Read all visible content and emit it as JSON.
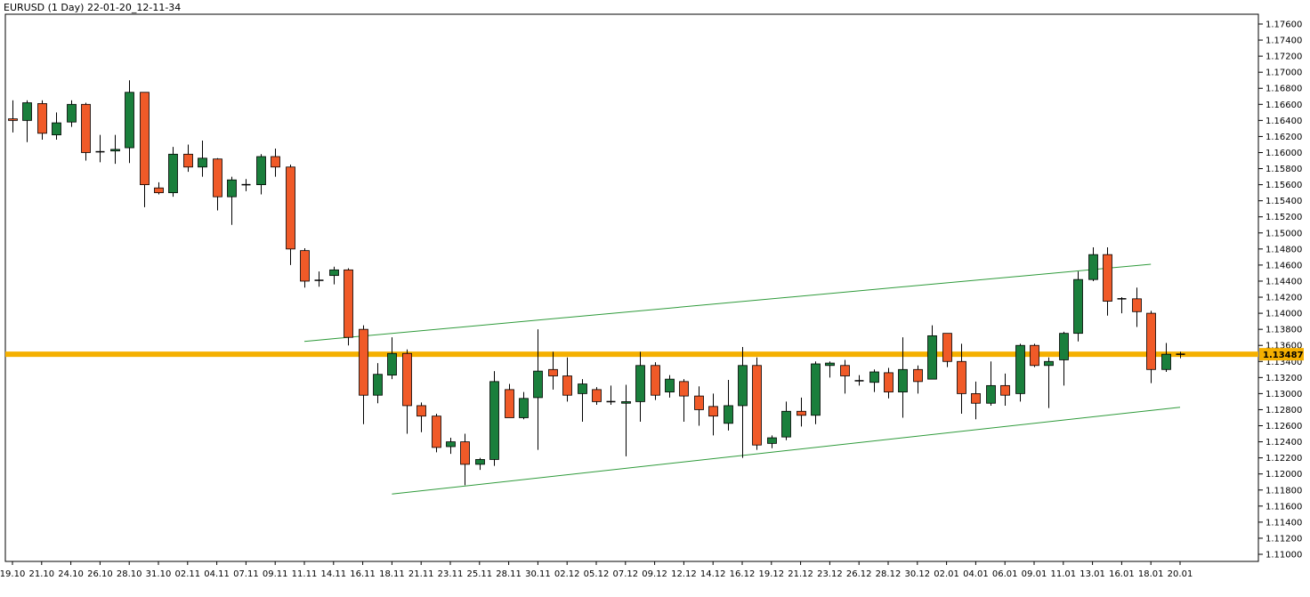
{
  "window": {
    "title": "EURUSD (1 Day) 22-01-20_12-11-34"
  },
  "colors": {
    "background": "#ffffff",
    "bull": "#1a7f3c",
    "bear": "#f05a28",
    "wick": "#000000",
    "channel": "#2e9a3a",
    "level": "#f5b000",
    "grid_border": "#000000"
  },
  "chart_data": {
    "type": "candlestick",
    "symbol": "EURUSD",
    "timeframe": "1 Day",
    "ylim": [
      1.11,
      1.178
    ],
    "y_ticks": [
      "1.17600",
      "1.17400",
      "1.17200",
      "1.17000",
      "1.16800",
      "1.16600",
      "1.16400",
      "1.16200",
      "1.16000",
      "1.15800",
      "1.15600",
      "1.15400",
      "1.15200",
      "1.15000",
      "1.14800",
      "1.14600",
      "1.14400",
      "1.14200",
      "1.14000",
      "1.13800",
      "1.13600",
      "1.13400",
      "1.13200",
      "1.13000",
      "1.12800",
      "1.12600",
      "1.12400",
      "1.12200",
      "1.12000",
      "1.11800",
      "1.11600",
      "1.11400",
      "1.11200",
      "1.11000"
    ],
    "x_ticks": [
      "19.10",
      "21.10",
      "24.10",
      "26.10",
      "28.10",
      "31.10",
      "02.11",
      "04.11",
      "07.11",
      "09.11",
      "11.11",
      "14.11",
      "16.11",
      "18.11",
      "21.11",
      "23.11",
      "25.11",
      "28.11",
      "30.11",
      "02.12",
      "05.12",
      "07.12",
      "09.12",
      "12.12",
      "14.12",
      "16.12",
      "19.12",
      "21.12",
      "23.12",
      "26.12",
      "28.12",
      "30.12",
      "02.01",
      "04.01",
      "06.01",
      "09.01",
      "11.01",
      "13.01",
      "16.01",
      "18.01",
      "20.01"
    ],
    "candles": [
      {
        "o": 1.1642,
        "h": 1.1665,
        "l": 1.1625,
        "c": 1.164
      },
      {
        "o": 1.164,
        "h": 1.1665,
        "l": 1.1613,
        "c": 1.1662
      },
      {
        "o": 1.1661,
        "h": 1.1665,
        "l": 1.1616,
        "c": 1.1624
      },
      {
        "o": 1.1622,
        "h": 1.165,
        "l": 1.1616,
        "c": 1.1637
      },
      {
        "o": 1.1638,
        "h": 1.1665,
        "l": 1.1632,
        "c": 1.166
      },
      {
        "o": 1.166,
        "h": 1.1662,
        "l": 1.159,
        "c": 1.16
      },
      {
        "o": 1.16,
        "h": 1.1622,
        "l": 1.1588,
        "c": 1.1601
      },
      {
        "o": 1.1602,
        "h": 1.1622,
        "l": 1.1586,
        "c": 1.1604
      },
      {
        "o": 1.1606,
        "h": 1.169,
        "l": 1.1587,
        "c": 1.1675
      },
      {
        "o": 1.1675,
        "h": 1.1675,
        "l": 1.1532,
        "c": 1.156
      },
      {
        "o": 1.1556,
        "h": 1.1563,
        "l": 1.1548,
        "c": 1.155
      },
      {
        "o": 1.155,
        "h": 1.1607,
        "l": 1.1545,
        "c": 1.1598
      },
      {
        "o": 1.1598,
        "h": 1.161,
        "l": 1.1576,
        "c": 1.1582
      },
      {
        "o": 1.1582,
        "h": 1.1615,
        "l": 1.157,
        "c": 1.1593
      },
      {
        "o": 1.1592,
        "h": 1.1593,
        "l": 1.1528,
        "c": 1.1545
      },
      {
        "o": 1.1545,
        "h": 1.157,
        "l": 1.151,
        "c": 1.1566
      },
      {
        "o": 1.156,
        "h": 1.1567,
        "l": 1.1552,
        "c": 1.156
      },
      {
        "o": 1.156,
        "h": 1.1598,
        "l": 1.1548,
        "c": 1.1595
      },
      {
        "o": 1.1595,
        "h": 1.1605,
        "l": 1.157,
        "c": 1.1582
      },
      {
        "o": 1.1582,
        "h": 1.1585,
        "l": 1.146,
        "c": 1.148
      },
      {
        "o": 1.1478,
        "h": 1.1481,
        "l": 1.1432,
        "c": 1.144
      },
      {
        "o": 1.1441,
        "h": 1.1452,
        "l": 1.1433,
        "c": 1.1441
      },
      {
        "o": 1.1447,
        "h": 1.1458,
        "l": 1.1436,
        "c": 1.1454
      },
      {
        "o": 1.1454,
        "h": 1.1456,
        "l": 1.136,
        "c": 1.137
      },
      {
        "o": 1.138,
        "h": 1.1385,
        "l": 1.1262,
        "c": 1.1298
      },
      {
        "o": 1.1298,
        "h": 1.1338,
        "l": 1.1288,
        "c": 1.1324
      },
      {
        "o": 1.1323,
        "h": 1.137,
        "l": 1.1318,
        "c": 1.135
      },
      {
        "o": 1.135,
        "h": 1.1355,
        "l": 1.125,
        "c": 1.1285
      },
      {
        "o": 1.1285,
        "h": 1.1289,
        "l": 1.1252,
        "c": 1.1272
      },
      {
        "o": 1.1272,
        "h": 1.1275,
        "l": 1.1227,
        "c": 1.1233
      },
      {
        "o": 1.1234,
        "h": 1.1245,
        "l": 1.1225,
        "c": 1.124
      },
      {
        "o": 1.124,
        "h": 1.125,
        "l": 1.1186,
        "c": 1.1212
      },
      {
        "o": 1.1212,
        "h": 1.122,
        "l": 1.1205,
        "c": 1.1218
      },
      {
        "o": 1.1218,
        "h": 1.1328,
        "l": 1.121,
        "c": 1.1315
      },
      {
        "o": 1.1305,
        "h": 1.1312,
        "l": 1.127,
        "c": 1.127
      },
      {
        "o": 1.127,
        "h": 1.1302,
        "l": 1.1268,
        "c": 1.1294
      },
      {
        "o": 1.1295,
        "h": 1.138,
        "l": 1.123,
        "c": 1.1328
      },
      {
        "o": 1.133,
        "h": 1.1352,
        "l": 1.1305,
        "c": 1.1322
      },
      {
        "o": 1.1322,
        "h": 1.1345,
        "l": 1.129,
        "c": 1.1298
      },
      {
        "o": 1.13,
        "h": 1.1318,
        "l": 1.1265,
        "c": 1.1312
      },
      {
        "o": 1.1305,
        "h": 1.1308,
        "l": 1.1286,
        "c": 1.129
      },
      {
        "o": 1.129,
        "h": 1.131,
        "l": 1.1286,
        "c": 1.129
      },
      {
        "o": 1.1288,
        "h": 1.1311,
        "l": 1.1222,
        "c": 1.129
      },
      {
        "o": 1.129,
        "h": 1.1352,
        "l": 1.1265,
        "c": 1.1335
      },
      {
        "o": 1.1335,
        "h": 1.1339,
        "l": 1.1292,
        "c": 1.1298
      },
      {
        "o": 1.1302,
        "h": 1.1323,
        "l": 1.1295,
        "c": 1.1318
      },
      {
        "o": 1.1315,
        "h": 1.1318,
        "l": 1.1265,
        "c": 1.1297
      },
      {
        "o": 1.1297,
        "h": 1.1309,
        "l": 1.126,
        "c": 1.128
      },
      {
        "o": 1.1284,
        "h": 1.13,
        "l": 1.1248,
        "c": 1.1272
      },
      {
        "o": 1.1263,
        "h": 1.1317,
        "l": 1.1254,
        "c": 1.1285
      },
      {
        "o": 1.1285,
        "h": 1.1358,
        "l": 1.122,
        "c": 1.1335
      },
      {
        "o": 1.1335,
        "h": 1.1345,
        "l": 1.123,
        "c": 1.1236
      },
      {
        "o": 1.1238,
        "h": 1.1248,
        "l": 1.1232,
        "c": 1.1245
      },
      {
        "o": 1.1246,
        "h": 1.129,
        "l": 1.1242,
        "c": 1.1278
      },
      {
        "o": 1.1278,
        "h": 1.1295,
        "l": 1.1259,
        "c": 1.1273
      },
      {
        "o": 1.1273,
        "h": 1.134,
        "l": 1.1262,
        "c": 1.1337
      },
      {
        "o": 1.1335,
        "h": 1.134,
        "l": 1.132,
        "c": 1.1338
      },
      {
        "o": 1.1335,
        "h": 1.1342,
        "l": 1.13,
        "c": 1.1322
      },
      {
        "o": 1.1316,
        "h": 1.1323,
        "l": 1.131,
        "c": 1.1316
      },
      {
        "o": 1.1314,
        "h": 1.133,
        "l": 1.1302,
        "c": 1.1327
      },
      {
        "o": 1.1326,
        "h": 1.1332,
        "l": 1.1294,
        "c": 1.1302
      },
      {
        "o": 1.1302,
        "h": 1.137,
        "l": 1.127,
        "c": 1.133
      },
      {
        "o": 1.133,
        "h": 1.1335,
        "l": 1.13,
        "c": 1.1315
      },
      {
        "o": 1.1318,
        "h": 1.1385,
        "l": 1.1318,
        "c": 1.1372
      },
      {
        "o": 1.1375,
        "h": 1.1375,
        "l": 1.1333,
        "c": 1.134
      },
      {
        "o": 1.134,
        "h": 1.1362,
        "l": 1.1275,
        "c": 1.13
      },
      {
        "o": 1.13,
        "h": 1.1315,
        "l": 1.1268,
        "c": 1.1288
      },
      {
        "o": 1.1288,
        "h": 1.134,
        "l": 1.1285,
        "c": 1.131
      },
      {
        "o": 1.131,
        "h": 1.1325,
        "l": 1.1285,
        "c": 1.1298
      },
      {
        "o": 1.13,
        "h": 1.1362,
        "l": 1.129,
        "c": 1.136
      },
      {
        "o": 1.136,
        "h": 1.1362,
        "l": 1.1333,
        "c": 1.1335
      },
      {
        "o": 1.1335,
        "h": 1.1345,
        "l": 1.1282,
        "c": 1.134
      },
      {
        "o": 1.1342,
        "h": 1.1377,
        "l": 1.131,
        "c": 1.1375
      },
      {
        "o": 1.1375,
        "h": 1.1452,
        "l": 1.1365,
        "c": 1.1442
      },
      {
        "o": 1.1442,
        "h": 1.1482,
        "l": 1.144,
        "c": 1.1473
      },
      {
        "o": 1.1473,
        "h": 1.1482,
        "l": 1.1397,
        "c": 1.1415
      },
      {
        "o": 1.1418,
        "h": 1.142,
        "l": 1.14,
        "c": 1.1418
      },
      {
        "o": 1.1418,
        "h": 1.1432,
        "l": 1.1383,
        "c": 1.1402
      },
      {
        "o": 1.14,
        "h": 1.1403,
        "l": 1.1313,
        "c": 1.133
      },
      {
        "o": 1.133,
        "h": 1.1363,
        "l": 1.1327,
        "c": 1.1349
      },
      {
        "o": 1.1349,
        "h": 1.1352,
        "l": 1.1344,
        "c": 1.1349
      }
    ],
    "last_price": "1.13487",
    "horizontal_level": 1.1349,
    "channel_lines": [
      {
        "name": "upper",
        "start": {
          "i": 20,
          "price": 1.1365
        },
        "end": {
          "i": 78,
          "price": 1.1461
        }
      },
      {
        "name": "lower",
        "start": {
          "i": 26,
          "price": 1.1175
        },
        "end": {
          "i": 80,
          "price": 1.1283
        }
      }
    ]
  }
}
